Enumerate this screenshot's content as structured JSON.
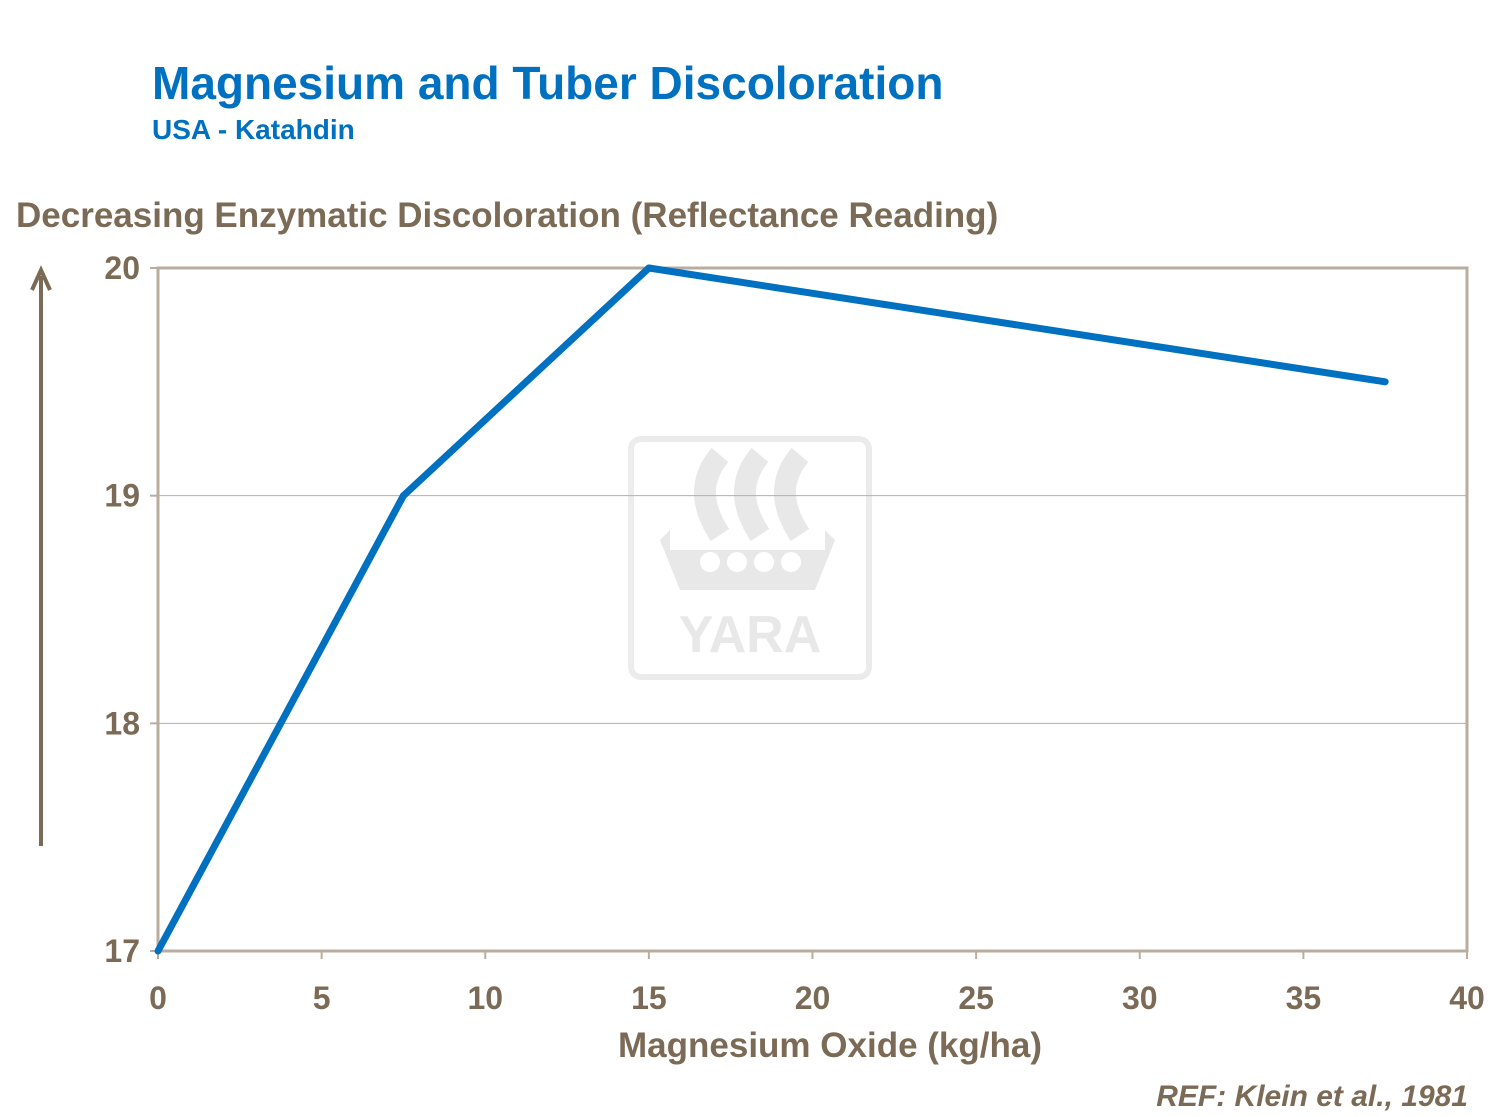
{
  "chart_data": {
    "type": "line",
    "title": "Magnesium and Tuber Discoloration",
    "subtitle": "USA - Katahdin",
    "xlabel": "Magnesium Oxide (kg/ha)",
    "ylabel": "Decreasing Enzymatic Discoloration (Reflectance Reading)",
    "xlim": [
      0,
      40
    ],
    "ylim": [
      17,
      20
    ],
    "xticks": [
      0,
      5,
      10,
      15,
      20,
      25,
      30,
      35,
      40
    ],
    "yticks": [
      17,
      18,
      19,
      20
    ],
    "grid": "horizontal",
    "series": [
      {
        "x": [
          0,
          7.5,
          15,
          37.5
        ],
        "y": [
          17,
          19,
          20,
          19.5
        ],
        "color": "#0070c0"
      }
    ],
    "annotation_arrow": "up",
    "reference": "REF: Klein et al., 1981"
  },
  "watermark": {
    "text": "YARA"
  },
  "colors": {
    "title": "#0070c0",
    "axis_text": "#7b6a55",
    "frame": "#b8ad9e",
    "grid": "#b0b0b0"
  }
}
